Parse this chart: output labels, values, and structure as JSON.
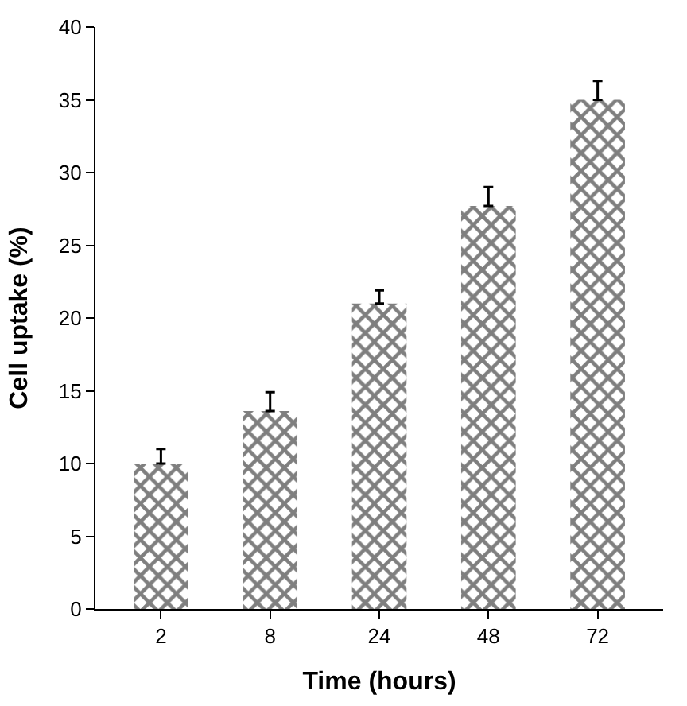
{
  "chart_data": {
    "type": "bar",
    "xlabel": "Time (hours)",
    "ylabel": "Cell uptake (%)",
    "categories": [
      "2",
      "8",
      "24",
      "48",
      "72"
    ],
    "values": [
      10,
      13.6,
      21,
      27.7,
      35
    ],
    "errors": [
      [
        10,
        11
      ],
      [
        13.6,
        14.9
      ],
      [
        21,
        21.9
      ],
      [
        27.7,
        29
      ],
      [
        35,
        36.3
      ]
    ],
    "color": "#000000",
    "ylim": [
      0,
      40
    ],
    "yticks": [
      0,
      5,
      10,
      15,
      20,
      25,
      30,
      35,
      40
    ]
  }
}
